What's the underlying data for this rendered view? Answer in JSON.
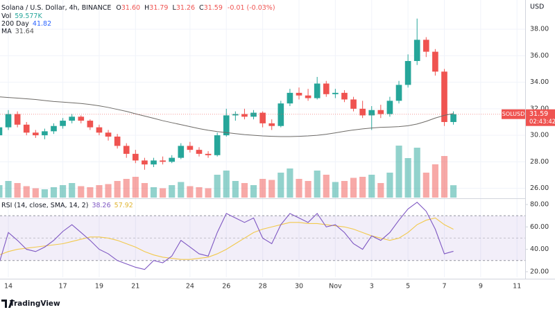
{
  "header": {
    "title": "Solana / U.S. Dollar, 4h, BINANCE",
    "ohlc": [
      {
        "label": "O",
        "value": "31.60"
      },
      {
        "label": "H",
        "value": "31.79"
      },
      {
        "label": "L",
        "value": "31.26"
      },
      {
        "label": "C",
        "value": "31.59"
      }
    ],
    "change": "-0.01 (-0.03%)"
  },
  "legend": [
    {
      "name": "Vol",
      "value": "59.577K"
    },
    {
      "name": "200 Day",
      "value": "41.82"
    },
    {
      "name": "MA",
      "value": "31.64"
    }
  ],
  "price_tag": {
    "symbol": "SOLUSD",
    "price": "31.59",
    "countdown": "02:43:42"
  },
  "footer": "TradingView",
  "chart_data": [
    {
      "type": "candlestick",
      "currency": "USD",
      "up_color": "#26a69a",
      "down_color": "#ef5350",
      "ma_color": "#6d6a66",
      "grid": true,
      "x": [
        -0.5,
        0,
        0.5,
        1,
        1.5,
        2,
        2.5,
        3,
        3.5,
        4,
        4.5,
        5,
        5.5,
        6,
        6.5,
        7,
        7.5,
        8,
        8.5,
        9,
        9.5,
        10,
        10.5,
        11,
        11.5,
        12,
        12.5,
        13,
        13.5,
        14,
        14.5,
        15,
        15.5,
        16,
        16.5,
        17,
        17.5,
        18,
        18.5,
        19,
        19.5,
        20,
        20.5,
        21,
        21.5,
        22,
        22.5,
        23,
        23.5,
        24,
        24.5
      ],
      "open": [
        30.0,
        30.6,
        31.6,
        30.8,
        30.2,
        30.0,
        30.3,
        30.7,
        31.1,
        31.4,
        31.1,
        30.6,
        30.2,
        29.9,
        29.2,
        28.6,
        28.1,
        27.8,
        28.1,
        28.0,
        28.3,
        29.2,
        28.9,
        28.6,
        28.5,
        30.0,
        31.5,
        31.6,
        31.4,
        31.7,
        30.9,
        30.7,
        32.4,
        33.2,
        33.0,
        32.8,
        33.9,
        33.1,
        33.2,
        32.7,
        32.0,
        31.5,
        31.9,
        31.6,
        32.6,
        33.8,
        35.6,
        37.2,
        36.3,
        34.8,
        31.0
      ],
      "high": [
        30.8,
        31.9,
        31.8,
        31.0,
        30.4,
        30.5,
        30.9,
        31.3,
        31.6,
        31.5,
        31.2,
        30.8,
        30.4,
        30.1,
        29.4,
        28.9,
        28.3,
        28.3,
        28.4,
        28.5,
        29.4,
        29.5,
        29.1,
        28.8,
        30.2,
        32.0,
        31.8,
        32.0,
        31.9,
        31.8,
        31.2,
        32.6,
        33.5,
        33.6,
        33.5,
        34.4,
        34.1,
        33.5,
        33.4,
        32.9,
        32.6,
        32.2,
        32.3,
        32.9,
        34.1,
        36.1,
        38.8,
        37.4,
        36.5,
        35.0,
        31.8
      ],
      "low": [
        29.4,
        30.4,
        30.6,
        30.0,
        29.8,
        29.7,
        30.1,
        30.5,
        30.9,
        30.9,
        30.4,
        30.0,
        29.6,
        29.0,
        28.3,
        27.9,
        27.4,
        27.6,
        27.8,
        27.9,
        28.2,
        28.7,
        28.4,
        28.3,
        28.4,
        29.9,
        31.1,
        31.2,
        31.2,
        30.6,
        30.4,
        30.6,
        32.2,
        32.7,
        32.6,
        32.7,
        32.9,
        32.8,
        32.5,
        31.8,
        31.3,
        30.4,
        31.3,
        31.4,
        32.4,
        33.6,
        35.3,
        35.9,
        34.5,
        30.7,
        30.8
      ],
      "close": [
        30.6,
        31.6,
        30.8,
        30.2,
        30.0,
        30.3,
        30.7,
        31.1,
        31.4,
        31.1,
        30.6,
        30.2,
        29.9,
        29.2,
        28.6,
        28.1,
        27.8,
        28.1,
        28.0,
        28.3,
        29.2,
        28.9,
        28.6,
        28.5,
        30.0,
        31.5,
        31.6,
        31.4,
        31.7,
        30.9,
        30.7,
        32.4,
        33.2,
        33.0,
        32.8,
        33.9,
        33.1,
        33.2,
        32.7,
        32.0,
        31.5,
        31.9,
        31.6,
        32.6,
        33.8,
        35.6,
        37.2,
        36.3,
        34.8,
        31.0,
        31.59
      ],
      "volume": [
        60,
        80,
        70,
        55,
        45,
        40,
        50,
        60,
        70,
        55,
        50,
        60,
        65,
        80,
        90,
        100,
        70,
        50,
        45,
        60,
        75,
        55,
        50,
        45,
        110,
        130,
        80,
        70,
        60,
        90,
        85,
        120,
        140,
        90,
        80,
        130,
        110,
        75,
        80,
        95,
        100,
        110,
        70,
        120,
        250,
        190,
        240,
        120,
        160,
        200,
        59.577
      ],
      "ma_values": [
        32.9,
        32.85,
        32.8,
        32.75,
        32.7,
        32.62,
        32.55,
        32.5,
        32.45,
        32.4,
        32.32,
        32.22,
        32.1,
        31.95,
        31.8,
        31.62,
        31.45,
        31.28,
        31.1,
        30.95,
        30.8,
        30.65,
        30.5,
        30.38,
        30.28,
        30.2,
        30.12,
        30.05,
        30.0,
        29.95,
        29.92,
        29.9,
        29.9,
        29.92,
        29.95,
        30.0,
        30.08,
        30.18,
        30.3,
        30.4,
        30.48,
        30.55,
        30.6,
        30.62,
        30.65,
        30.72,
        30.85,
        31.05,
        31.3,
        31.5,
        31.64
      ],
      "xlim": [
        -0.46,
        28.45
      ],
      "xticks": [
        {
          "value": 0,
          "label": "14"
        },
        {
          "value": 3,
          "label": "17"
        },
        {
          "value": 5,
          "label": "19"
        },
        {
          "value": 7,
          "label": "21"
        },
        {
          "value": 10,
          "label": "24"
        },
        {
          "value": 12,
          "label": "26"
        },
        {
          "value": 14,
          "label": "28"
        },
        {
          "value": 16,
          "label": "30"
        },
        {
          "value": 18,
          "label": "Nov"
        },
        {
          "value": 20,
          "label": "3"
        },
        {
          "value": 22,
          "label": "5"
        },
        {
          "value": 24,
          "label": "7"
        },
        {
          "value": 26,
          "label": "9"
        },
        {
          "value": 28,
          "label": "11"
        }
      ],
      "ylim": [
        25.3,
        40.2
      ],
      "yticks": [
        {
          "value": 26,
          "label": "26.00"
        },
        {
          "value": 28,
          "label": "28.00"
        },
        {
          "value": 30,
          "label": "30.00"
        },
        {
          "value": 32,
          "label": "32.00"
        },
        {
          "value": 34,
          "label": "34.00"
        },
        {
          "value": 36,
          "label": "36.00"
        },
        {
          "value": 38,
          "label": "38.00"
        }
      ]
    },
    {
      "type": "line",
      "title": "RSI (14, close, SMA, 14, 2)",
      "x": [
        -0.5,
        0,
        0.5,
        1,
        1.5,
        2,
        2.5,
        3,
        3.5,
        4,
        4.5,
        5,
        5.5,
        6,
        6.5,
        7,
        7.5,
        8,
        8.5,
        9,
        9.5,
        10,
        10.5,
        11,
        11.5,
        12,
        12.5,
        13,
        13.5,
        14,
        14.5,
        15,
        15.5,
        16,
        16.5,
        17,
        17.5,
        18,
        18.5,
        19,
        19.5,
        20,
        20.5,
        21,
        21.5,
        22,
        22.5,
        23,
        23.5,
        24,
        24.5
      ],
      "series": [
        {
          "name": "RSI",
          "color": "#7e57c2",
          "legend_value": "38.26",
          "values": [
            28,
            55,
            48,
            40,
            38,
            42,
            48,
            56,
            62,
            55,
            48,
            40,
            36,
            30,
            27,
            24,
            22,
            30,
            28,
            34,
            48,
            42,
            36,
            34,
            55,
            72,
            68,
            64,
            68,
            50,
            45,
            62,
            72,
            68,
            64,
            72,
            60,
            62,
            55,
            45,
            40,
            52,
            48,
            55,
            66,
            76,
            82,
            74,
            58,
            36,
            38.26
          ]
        },
        {
          "name": "MA",
          "color": "#f2c94c",
          "legend_value": "57.92",
          "values": [
            35,
            38,
            40,
            41,
            42,
            43,
            44,
            45,
            47,
            49,
            51,
            51,
            50,
            48,
            45,
            42,
            38,
            35,
            33,
            32,
            31,
            31,
            32,
            33,
            36,
            40,
            45,
            50,
            55,
            58,
            60,
            62,
            64,
            64,
            63,
            63,
            62,
            61,
            60,
            58,
            55,
            52,
            50,
            48,
            50,
            55,
            62,
            66,
            68,
            62,
            57.92
          ]
        }
      ],
      "bands": {
        "upper": 70,
        "middle": 50,
        "lower": 30
      },
      "xlim": [
        -0.46,
        28.45
      ],
      "ylim": [
        15,
        84.3
      ],
      "yticks": [
        {
          "value": 20,
          "label": "20.00"
        },
        {
          "value": 40,
          "label": "40.00"
        },
        {
          "value": 60,
          "label": "60.00"
        },
        {
          "value": 80,
          "label": "80.00"
        }
      ]
    }
  ]
}
